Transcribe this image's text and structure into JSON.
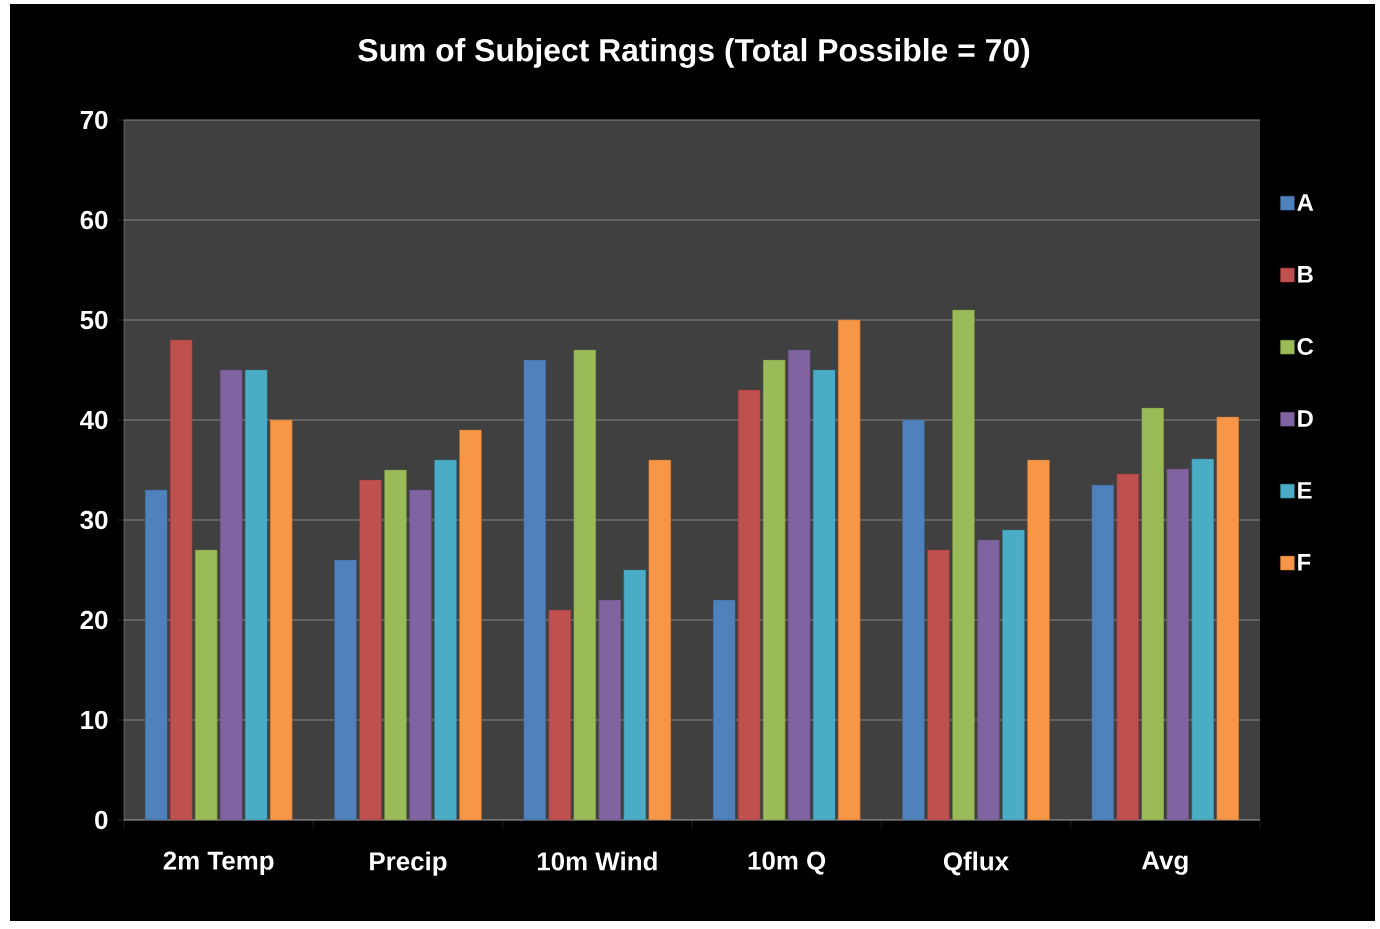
{
  "chart_data": {
    "type": "bar",
    "title": "Sum of Subject Ratings (Total Possible = 70)",
    "categories": [
      "2m Temp",
      "Precip",
      "10m Wind",
      "10m Q",
      "Qflux",
      "Avg"
    ],
    "series": [
      {
        "name": "A",
        "color": "#4f81bd",
        "values": [
          33,
          26,
          46,
          22,
          40,
          33.5
        ]
      },
      {
        "name": "B",
        "color": "#c0504d",
        "values": [
          48,
          34,
          21,
          43,
          27,
          34.6
        ]
      },
      {
        "name": "C",
        "color": "#9bbb59",
        "values": [
          27,
          35,
          47,
          46,
          51,
          41.2
        ]
      },
      {
        "name": "D",
        "color": "#8064a2",
        "values": [
          45,
          33,
          22,
          47,
          28,
          35.1
        ]
      },
      {
        "name": "E",
        "color": "#4bacc6",
        "values": [
          45,
          36,
          25,
          45,
          29,
          36.1
        ]
      },
      {
        "name": "F",
        "color": "#f79646",
        "values": [
          40,
          39,
          36,
          50,
          36,
          40.3
        ]
      }
    ],
    "ylim": [
      0,
      70
    ],
    "yticks": [
      0,
      10,
      20,
      30,
      40,
      50,
      60,
      70
    ],
    "grid": "y",
    "legend": "right"
  }
}
